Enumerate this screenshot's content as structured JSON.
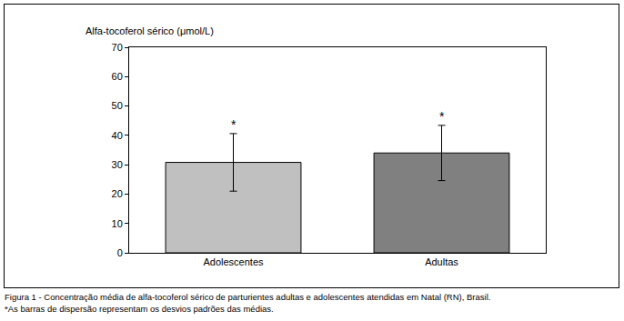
{
  "chart_data": {
    "type": "bar",
    "y_label": "Alfa-tocoferol sérico (μmol/L)",
    "categories": [
      "Adolescentes",
      "Adultas"
    ],
    "values": [
      30.8,
      34.0
    ],
    "error": [
      9.8,
      9.4
    ],
    "colors": [
      "#c0c0c0",
      "#808080"
    ],
    "ylim": [
      0,
      70
    ],
    "yticks": [
      0,
      10,
      20,
      30,
      40,
      50,
      60,
      70
    ],
    "grid": false,
    "annotations": [
      "*",
      "*"
    ],
    "caption": "Figura 1 - Concentração média de alfa-tocoferol sérico de parturientes adultas e adolescentes atendidas em Natal (RN), Brasil.",
    "note": "*As barras de dispersão representam os desvios padrões das médias."
  }
}
